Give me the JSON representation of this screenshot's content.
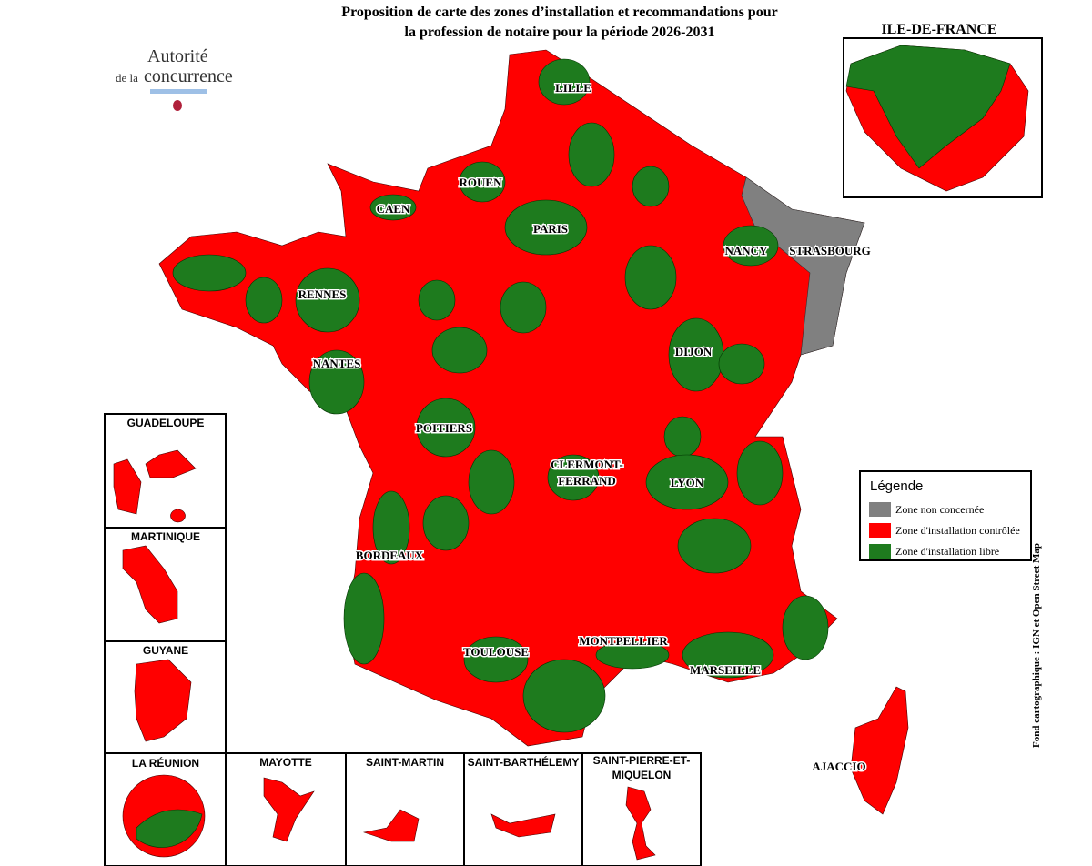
{
  "header": {
    "title_lines": [
      "Proposition de carte des zones d’installation et recommandations pour",
      "la profession de notaire pour la période 2026-2031"
    ]
  },
  "logo": {
    "line1": "Autorité",
    "prefix": "de la",
    "line2": "concurrence"
  },
  "map": {
    "cities": [
      {
        "lines": [
          "LILLE"
        ]
      },
      {
        "lines": [
          "ROUEN"
        ]
      },
      {
        "lines": [
          "CAEN"
        ]
      },
      {
        "lines": [
          "PARIS"
        ]
      },
      {
        "lines": [
          "NANCY"
        ]
      },
      {
        "lines": [
          "STRASBOURG"
        ]
      },
      {
        "lines": [
          "RENNES"
        ]
      },
      {
        "lines": [
          "NANTES"
        ]
      },
      {
        "lines": [
          "DIJON"
        ]
      },
      {
        "lines": [
          "POITIERS"
        ]
      },
      {
        "lines": [
          "CLERMONT-",
          "FERRAND"
        ]
      },
      {
        "lines": [
          "LYON"
        ]
      },
      {
        "lines": [
          "BORDEAUX"
        ]
      },
      {
        "lines": [
          "TOULOUSE"
        ]
      },
      {
        "lines": [
          "MONTPELLIER"
        ]
      },
      {
        "lines": [
          "MARSEILLE"
        ]
      },
      {
        "lines": [
          "AJACCIO"
        ]
      }
    ]
  },
  "insets": [
    {
      "lines": [
        "ILE-DE-FRANCE"
      ]
    },
    {
      "lines": [
        "GUADELOUPE"
      ]
    },
    {
      "lines": [
        "MARTINIQUE"
      ]
    },
    {
      "lines": [
        "GUYANE"
      ]
    },
    {
      "lines": [
        "LA RÉUNION"
      ]
    },
    {
      "lines": [
        "MAYOTTE"
      ]
    },
    {
      "lines": [
        "SAINT-MARTIN"
      ]
    },
    {
      "lines": [
        "SAINT-BARTHÉLEMY"
      ]
    },
    {
      "lines": [
        "SAINT-PIERRE-ET-",
        "MIQUELON"
      ]
    }
  ],
  "legend": {
    "title": "Légende",
    "items": [
      {
        "label": "Zone non concernée",
        "color": "#808080"
      },
      {
        "label": "Zone d'installation contrôlée",
        "color": "#ff0000"
      },
      {
        "label": "Zone d'installation libre",
        "color": "#1e7b1e"
      }
    ]
  },
  "source": "Fond cartographique : IGN et Open Street Map"
}
